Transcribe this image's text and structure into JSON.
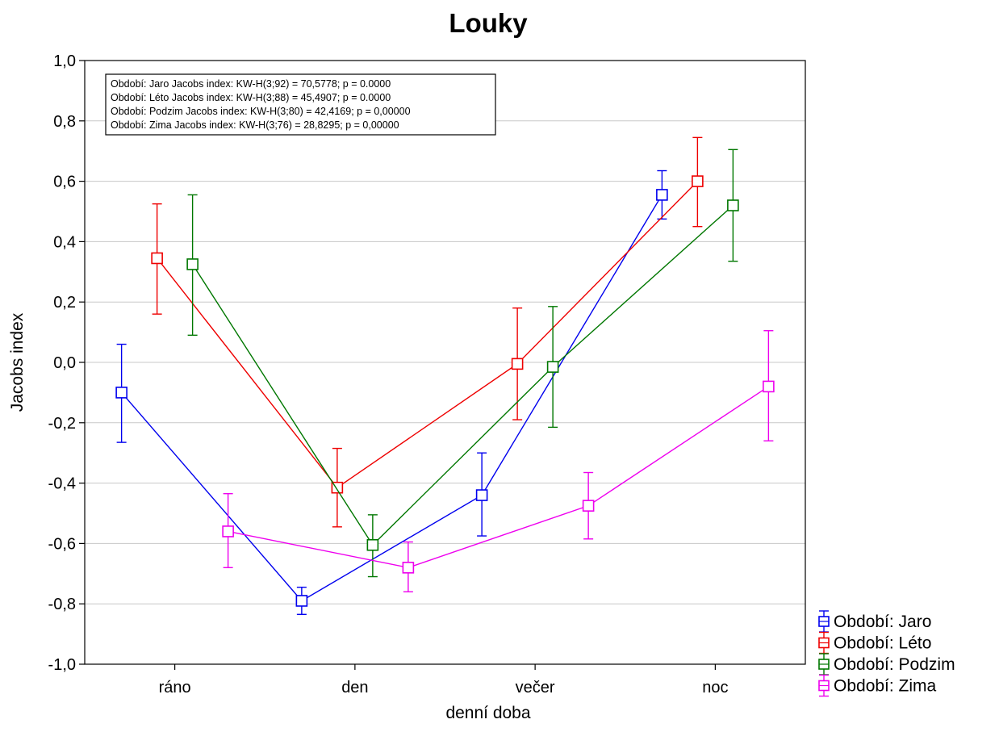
{
  "chart_data": {
    "type": "line",
    "title": "Louky",
    "xlabel": "denní doba",
    "ylabel": "Jacobs index",
    "categories": [
      "ráno",
      "den",
      "večer",
      "noc"
    ],
    "ylim": [
      -1.0,
      1.0
    ],
    "yticks": [
      "1,0",
      "0,8",
      "0,6",
      "0,4",
      "0,2",
      "0,0",
      "-0,2",
      "-0,4",
      "-0,6",
      "-0,8",
      "-1,0"
    ],
    "grid": true,
    "legend_position": "bottom-right outside",
    "stats_box": [
      "Období: Jaro  Jacobs index:  KW-H(3;92) = 70,5778; p = 0.0000",
      "Období: Léto  Jacobs index:  KW-H(3;88) = 45,4907; p = 0.0000",
      "Období: Podzim  Jacobs index:  KW-H(3;80) = 42,4169; p = 0,00000",
      "Období: Zima  Jacobs index:  KW-H(3;76) = 28,8295; p = 0,00000"
    ],
    "series": [
      {
        "name": "Období: Jaro",
        "color": "#0000ee",
        "values": [
          -0.1,
          -0.79,
          -0.44,
          0.555
        ],
        "lower": [
          -0.265,
          -0.835,
          -0.575,
          0.475
        ],
        "upper": [
          0.06,
          -0.745,
          -0.3,
          0.635
        ]
      },
      {
        "name": "Období: Léto",
        "color": "#ee0000",
        "values": [
          0.345,
          -0.415,
          -0.005,
          0.6
        ],
        "lower": [
          0.16,
          -0.545,
          -0.19,
          0.45
        ],
        "upper": [
          0.525,
          -0.285,
          0.18,
          0.745
        ]
      },
      {
        "name": "Období: Podzim",
        "color": "#007700",
        "values": [
          0.325,
          -0.605,
          -0.015,
          0.52
        ],
        "lower": [
          0.09,
          -0.71,
          -0.215,
          0.335
        ],
        "upper": [
          0.555,
          -0.505,
          0.185,
          0.705
        ]
      },
      {
        "name": "Období: Zima",
        "color": "#ee00ee",
        "values": [
          -0.56,
          -0.68,
          -0.475,
          -0.08
        ],
        "lower": [
          -0.68,
          -0.76,
          -0.585,
          -0.26
        ],
        "upper": [
          -0.435,
          -0.595,
          -0.365,
          0.105
        ]
      }
    ]
  }
}
